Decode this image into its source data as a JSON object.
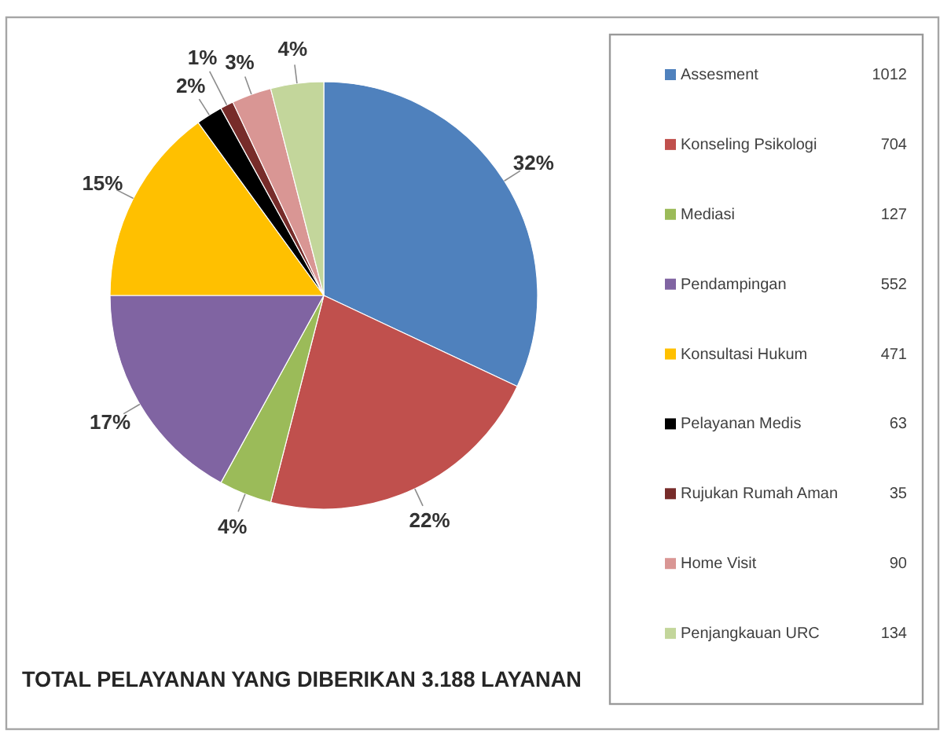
{
  "chart_data": {
    "type": "pie",
    "title": "TOTAL PELAYANAN YANG DIBERIKAN 3.188 LAYANAN",
    "categories": [
      "Assesment",
      "Konseling Psikologi",
      "Mediasi",
      "Pendampingan",
      "Konsultasi Hukum",
      "Pelayanan Medis",
      "Rujukan Rumah Aman",
      "Home Visit",
      "Penjangkauan URC"
    ],
    "values": [
      32,
      22,
      4,
      17,
      15,
      2,
      1,
      3,
      4
    ],
    "colors": [
      "#4f81bd",
      "#c0504d",
      "#9bbb59",
      "#8064a2",
      "#ffc000",
      "#000000",
      "#772c2a",
      "#d99694",
      "#c3d69b"
    ],
    "value_labels": [
      "32%",
      "22%",
      "4%",
      "17%",
      "15%",
      "2%",
      "1%",
      "3%",
      "4%"
    ],
    "annotations": [
      "1012",
      "704",
      "127",
      "552",
      "471",
      "63",
      "35",
      "90",
      "134"
    ],
    "legend": "right"
  }
}
